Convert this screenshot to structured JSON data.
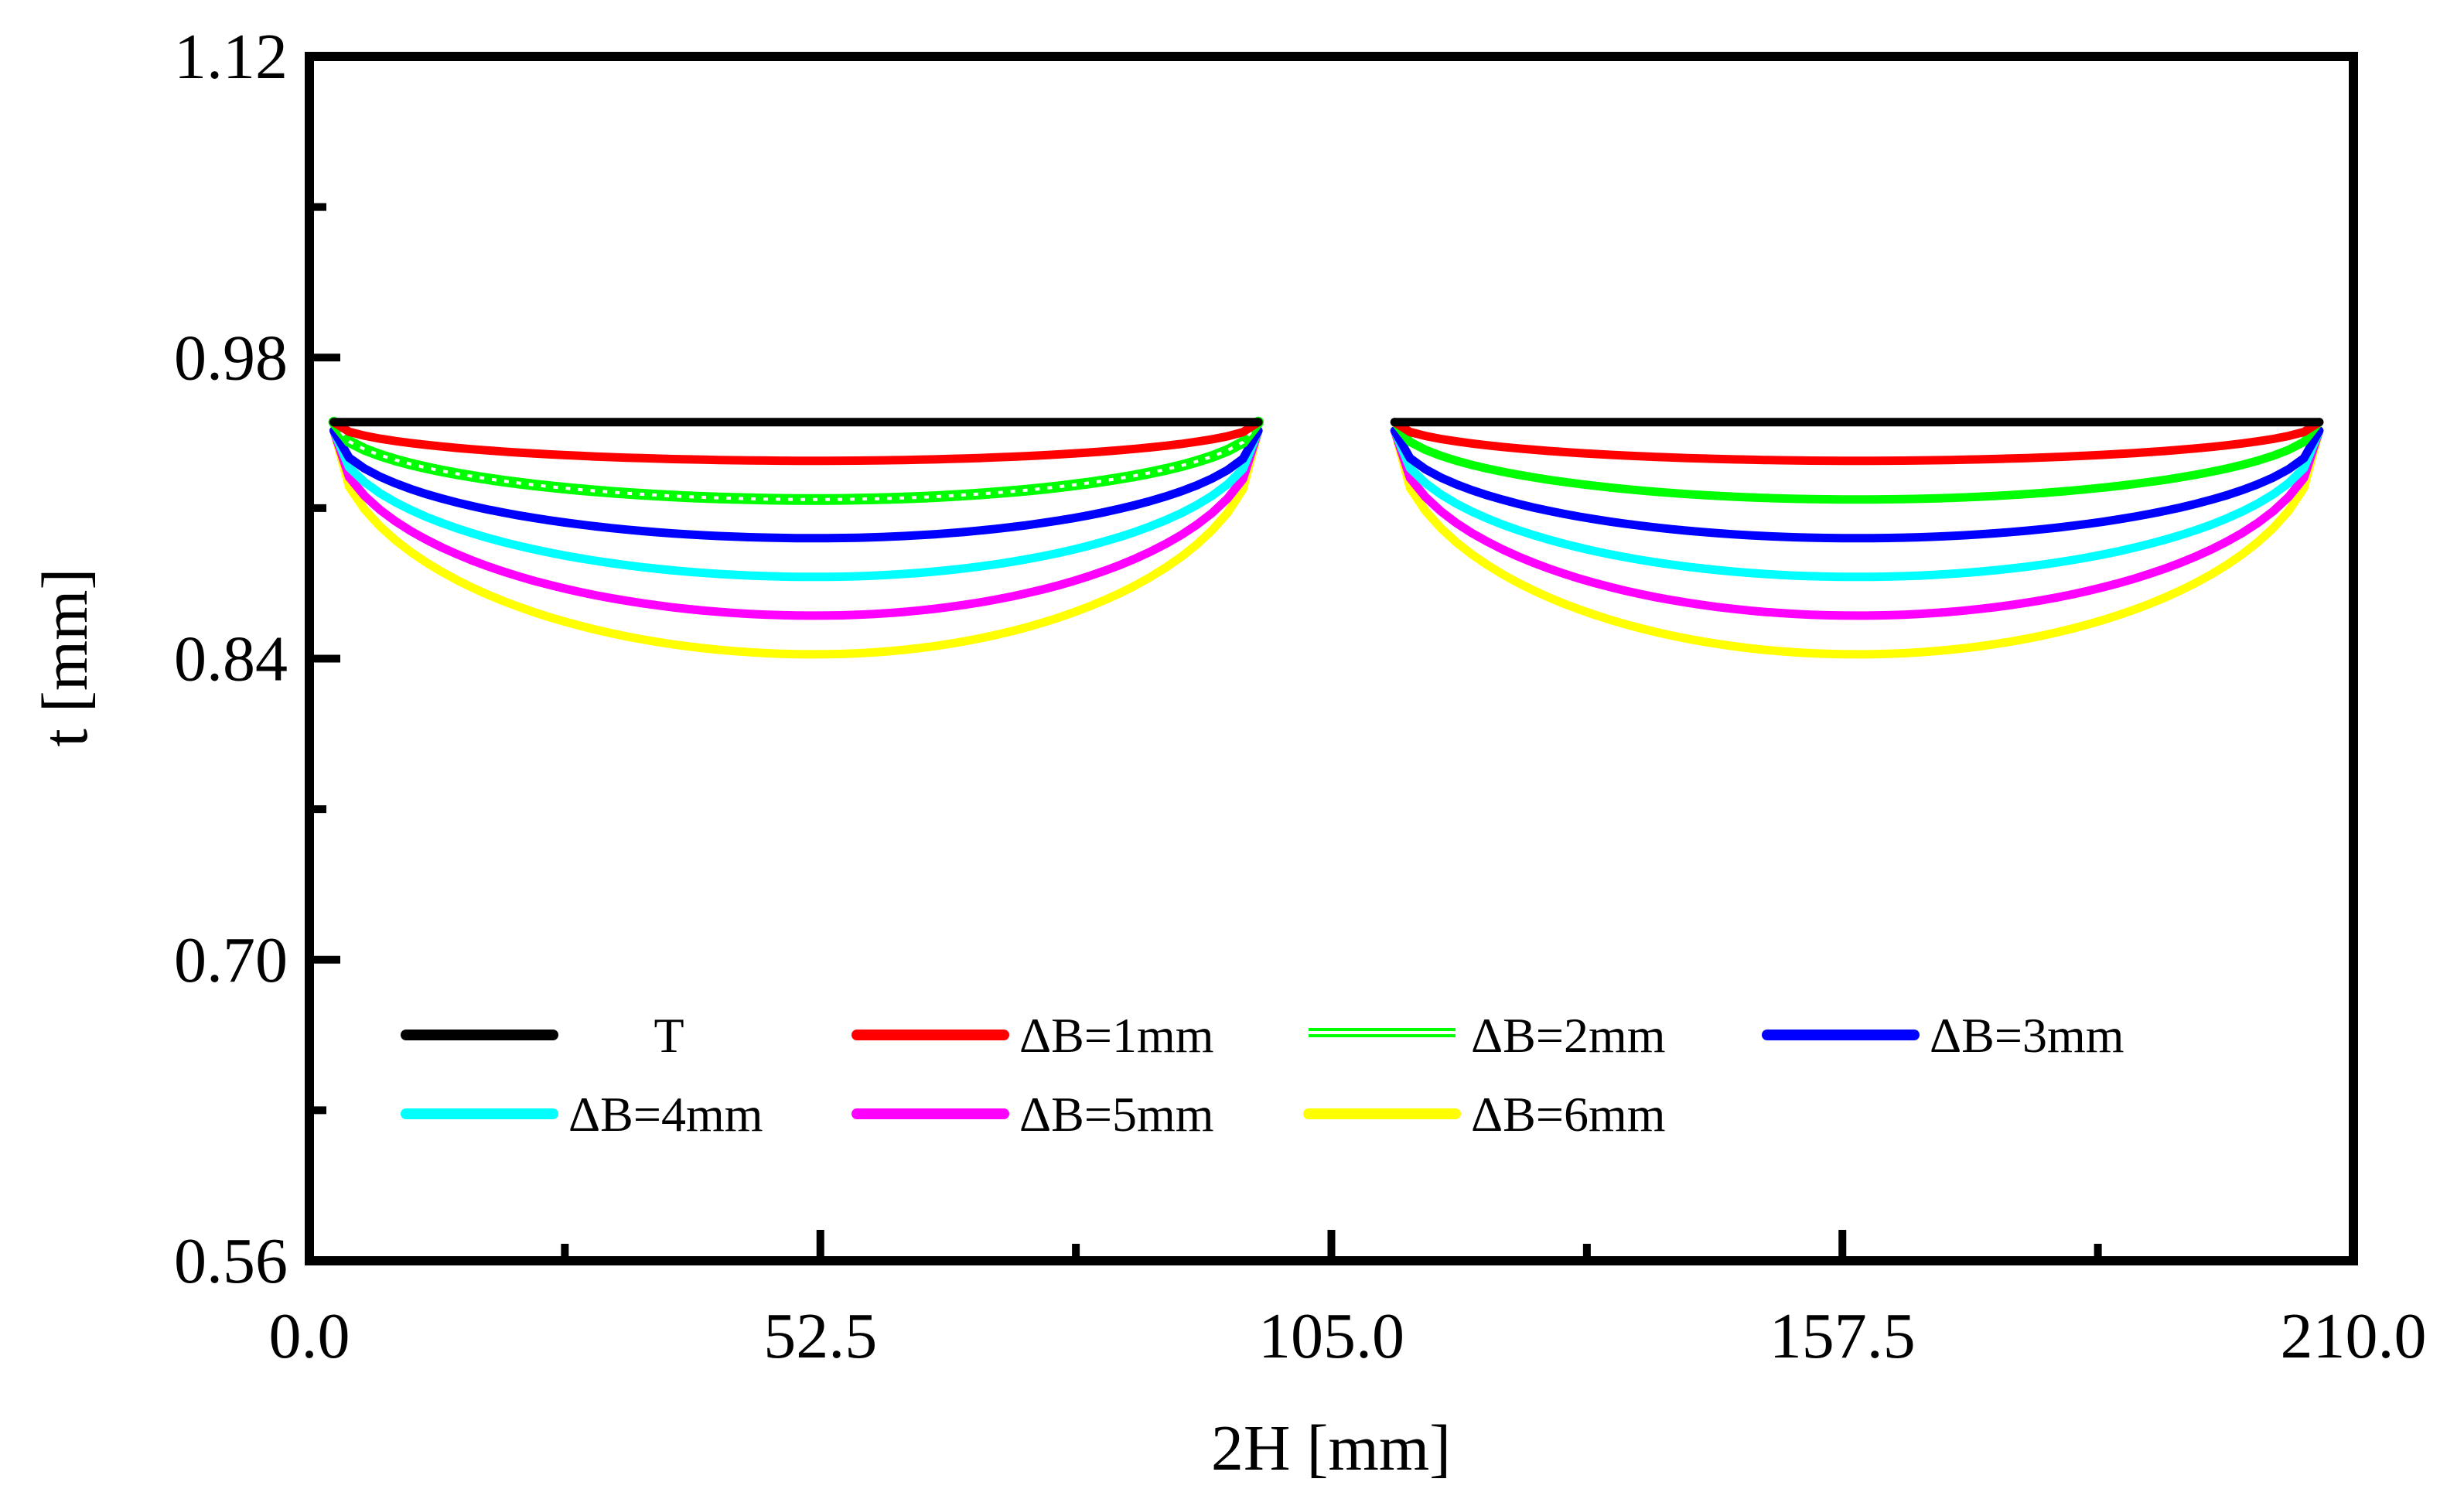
{
  "chart_data": {
    "type": "line",
    "xlabel": "2H [mm]",
    "ylabel": "t [mm]",
    "xlim": [
      0,
      210
    ],
    "ylim": [
      0.56,
      1.12
    ],
    "xticks": [
      0,
      52.5,
      105,
      157.5,
      210
    ],
    "xtick_labels": [
      "0.0",
      "52.5",
      "105.0",
      "157.5",
      "210.0"
    ],
    "xminor": [
      26.25,
      78.75,
      131.25,
      183.75
    ],
    "yticks": [
      0.56,
      0.7,
      0.84,
      0.98,
      1.12
    ],
    "ytick_labels": [
      "0.56",
      "0.70",
      "0.84",
      "0.98",
      "1.12"
    ],
    "yminor": [
      0.63,
      0.77,
      0.91,
      1.05
    ],
    "segments": [
      {
        "x_start": 2.5,
        "x_end": 97.5,
        "x_min": 52
      },
      {
        "x_start": 111.5,
        "x_end": 206.5,
        "x_min": 159
      }
    ],
    "series": [
      {
        "name": "T",
        "label": "T",
        "color": "#000000",
        "start": 0.95,
        "min": 0.95,
        "style": "solid"
      },
      {
        "name": "dB1",
        "label": "ΔB=1mm",
        "color": "#ff0000",
        "start": 0.95,
        "min": 0.932,
        "style": "solid"
      },
      {
        "name": "dB2",
        "label": "ΔB=2mm",
        "color": "#00ff00",
        "start": 0.95,
        "min": 0.914,
        "style": "hatched-left"
      },
      {
        "name": "dB3",
        "label": "ΔB=3mm",
        "color": "#0000ff",
        "start": 0.946,
        "min": 0.896,
        "style": "solid"
      },
      {
        "name": "dB4",
        "label": "ΔB=4mm",
        "color": "#00ffff",
        "start": 0.946,
        "min": 0.878,
        "style": "solid"
      },
      {
        "name": "dB5",
        "label": "ΔB=5mm",
        "color": "#ff00ff",
        "start": 0.946,
        "min": 0.86,
        "style": "solid"
      },
      {
        "name": "dB6",
        "label": "ΔB=6mm",
        "color": "#ffff00",
        "start": 0.946,
        "min": 0.842,
        "style": "solid"
      }
    ],
    "legend": {
      "position": "lower-left",
      "columns": 4
    }
  }
}
